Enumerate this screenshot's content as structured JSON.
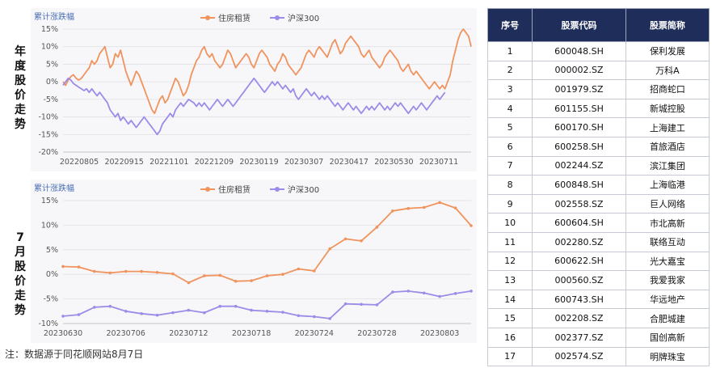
{
  "labels": {
    "top": "年度股价走势",
    "bottom": "7月股价走势"
  },
  "footnote": "注：数据源于同花顺网站8月7日",
  "colors": {
    "housing": "#f0935d",
    "hs300": "#9a8ce8",
    "header_bg": "#1f2d5a"
  },
  "chart_data": [
    {
      "type": "line",
      "title": "累计涨跌幅",
      "x_ticks": [
        "20220805",
        "20220915",
        "20221101",
        "20221209",
        "20230119",
        "20230307",
        "20230417",
        "20230530",
        "20230711"
      ],
      "y_ticks": [
        "15%",
        "10%",
        "5%",
        "0%",
        "-5%",
        "-10%",
        "-15%",
        "-20%"
      ],
      "ylim": [
        -20,
        15
      ],
      "series": [
        {
          "name": "住房租赁",
          "color": "#f0935d",
          "values": [
            0,
            -1,
            0.5,
            1.5,
            2,
            1,
            0.5,
            1,
            2,
            3,
            4,
            6,
            5,
            6,
            8,
            9,
            10,
            7,
            4,
            5,
            8,
            7,
            9,
            6,
            3,
            1,
            -1,
            1,
            3,
            2,
            0,
            -2,
            -4,
            -6,
            -8,
            -9,
            -7,
            -5,
            -4,
            -6,
            -5,
            -3,
            -1,
            1,
            0,
            -2,
            -4,
            -3,
            -1,
            2,
            4,
            6,
            7,
            9,
            10,
            8,
            7,
            8,
            6,
            5,
            4,
            5,
            7,
            9,
            8,
            6,
            4,
            5,
            6,
            7,
            8,
            7,
            5,
            4,
            6,
            8,
            9,
            8,
            7,
            5,
            4,
            3,
            5,
            6,
            8,
            7,
            5,
            4,
            3,
            2,
            3,
            4,
            6,
            8,
            9,
            8,
            7,
            9,
            10,
            9,
            8,
            7,
            9,
            11,
            12,
            10,
            8,
            9,
            11,
            12,
            13,
            12,
            11,
            10,
            8,
            7,
            8,
            9,
            7,
            6,
            5,
            4,
            5,
            7,
            8,
            9,
            8,
            7,
            6,
            4,
            3,
            4,
            5,
            3,
            2,
            3,
            2,
            1,
            0,
            -1,
            -2,
            -1,
            0,
            -1,
            -2,
            -1,
            -2,
            0,
            2,
            6,
            9,
            12,
            14,
            15,
            14,
            13,
            10
          ]
        },
        {
          "name": "沪深300",
          "color": "#9a8ce8",
          "values": [
            -1,
            0,
            1,
            0.5,
            -0.5,
            -1,
            -1.5,
            -2,
            -2.5,
            -2,
            -3,
            -2,
            -3,
            -4,
            -3,
            -4,
            -5,
            -6,
            -8,
            -9,
            -10,
            -9,
            -11,
            -10,
            -11,
            -12,
            -11,
            -12,
            -13,
            -12,
            -11,
            -10,
            -11,
            -12,
            -13,
            -14,
            -15,
            -14,
            -12,
            -11,
            -10,
            -9,
            -10,
            -8,
            -7,
            -6,
            -7,
            -6,
            -5,
            -5.5,
            -6,
            -7,
            -6,
            -7,
            -6,
            -7,
            -8,
            -7,
            -6,
            -5,
            -6,
            -7,
            -6,
            -5,
            -6,
            -7,
            -6,
            -5,
            -4,
            -3,
            -2,
            -1,
            0,
            1,
            0,
            -1,
            -2,
            -3,
            -2,
            -1,
            0,
            -1,
            0,
            -1,
            -2,
            -1,
            -2,
            -3,
            -2,
            -4,
            -5,
            -4,
            -3,
            -2,
            -3,
            -4,
            -3,
            -4,
            -5,
            -4,
            -5,
            -4,
            -5,
            -6,
            -7,
            -6,
            -7,
            -8,
            -7,
            -6,
            -7,
            -8,
            -7,
            -8,
            -9,
            -8,
            -7,
            -8,
            -7,
            -8,
            -7,
            -6,
            -7,
            -8,
            -7,
            -8,
            -7,
            -6,
            -7,
            -6,
            -7,
            -8,
            -9,
            -8,
            -7,
            -8,
            -7,
            -6,
            -7,
            -8,
            -7,
            -6,
            -5,
            -4,
            -5,
            -4,
            -3
          ]
        }
      ]
    },
    {
      "type": "line",
      "title": "累计涨跌幅",
      "x": [
        "20230630",
        "20230703",
        "20230704",
        "20230705",
        "20230706",
        "20230707",
        "20230710",
        "20230711",
        "20230712",
        "20230713",
        "20230714",
        "20230717",
        "20230718",
        "20230719",
        "20230720",
        "20230721",
        "20230724",
        "20230725",
        "20230726",
        "20230727",
        "20230728",
        "20230731",
        "20230801",
        "20230802",
        "20230803",
        "20230804",
        "20230807"
      ],
      "x_ticks": [
        "20230630",
        "20230706",
        "20230712",
        "20230718",
        "20230724",
        "20230728",
        "20230803"
      ],
      "y_ticks": [
        "15%",
        "10%",
        "5%",
        "0%",
        "-5%",
        "-10%"
      ],
      "ylim": [
        -10,
        15
      ],
      "series": [
        {
          "name": "住房租赁",
          "color": "#f0935d",
          "values": [
            1.6,
            1.5,
            0.6,
            0.3,
            0.6,
            0.6,
            0.4,
            0.1,
            -1.7,
            -0.3,
            -0.2,
            -1.4,
            -1.3,
            -0.3,
            0.0,
            1.1,
            0.7,
            5.2,
            7.2,
            6.8,
            9.6,
            12.9,
            13.4,
            13.6,
            14.6,
            13.5,
            9.9
          ]
        },
        {
          "name": "沪深300",
          "color": "#9a8ce8",
          "values": [
            -8.5,
            -8.2,
            -6.7,
            -6.5,
            -7.5,
            -8.0,
            -8.3,
            -7.8,
            -7.3,
            -7.8,
            -6.5,
            -6.5,
            -7.3,
            -7.5,
            -7.7,
            -8.4,
            -8.6,
            -9.0,
            -6.0,
            -6.1,
            -6.2,
            -3.6,
            -3.4,
            -3.8,
            -4.5,
            -3.9,
            -3.4
          ]
        }
      ]
    }
  ],
  "table": {
    "headers": [
      "序号",
      "股票代码",
      "股票简称"
    ],
    "rows": [
      [
        "1",
        "600048.SH",
        "保利发展"
      ],
      [
        "2",
        "000002.SZ",
        "万科A"
      ],
      [
        "3",
        "001979.SZ",
        "招商蛇口"
      ],
      [
        "4",
        "601155.SH",
        "新城控股"
      ],
      [
        "5",
        "600170.SH",
        "上海建工"
      ],
      [
        "6",
        "600258.SH",
        "首旅酒店"
      ],
      [
        "7",
        "002244.SZ",
        "滨江集团"
      ],
      [
        "8",
        "600848.SH",
        "上海临港"
      ],
      [
        "9",
        "002558.SZ",
        "巨人网络"
      ],
      [
        "10",
        "600604.SH",
        "市北高新"
      ],
      [
        "11",
        "002280.SZ",
        "联络互动"
      ],
      [
        "12",
        "600622.SH",
        "光大嘉宝"
      ],
      [
        "13",
        "000560.SZ",
        "我爱我家"
      ],
      [
        "14",
        "600743.SH",
        "华远地产"
      ],
      [
        "15",
        "002208.SZ",
        "合肥城建"
      ],
      [
        "16",
        "002377.SZ",
        "国创高新"
      ],
      [
        "17",
        "002574.SZ",
        "明牌珠宝"
      ]
    ]
  }
}
